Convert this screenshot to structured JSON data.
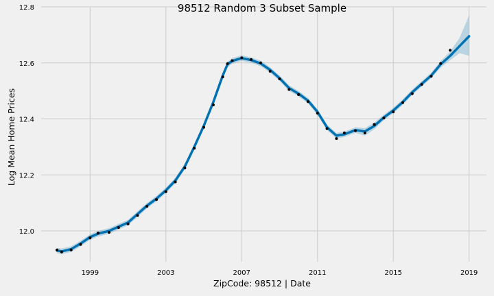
{
  "chart_data": {
    "type": "line",
    "title": "98512 Random 3 Subset Sample",
    "xlabel": "ZipCode: 98512 | Date",
    "ylabel": "Log Mean Home Prices",
    "xlim": [
      "1996-06-01",
      "2019-12-01"
    ],
    "ylim": [
      11.89,
      12.8
    ],
    "x_ticks": [
      "1999",
      "2003",
      "2007",
      "2011",
      "2015",
      "2019"
    ],
    "y_ticks": [
      "12.0",
      "12.2",
      "12.4",
      "12.6",
      "12.8"
    ],
    "grid": true,
    "colors": {
      "background": "#f0f0f0",
      "grid": "#cbcbcb",
      "forecast": "#0072B2",
      "uncertainty": "#0072B2",
      "actual": "#000000"
    },
    "series": [
      {
        "x": [
          "1997-04-01",
          "1997-07-01",
          "1998-01-01",
          "1998-07-01",
          "1999-01-01",
          "1999-06-01",
          "2000-01-01",
          "2000-07-01",
          "2001-01-01",
          "2001-07-01",
          "2002-01-01",
          "2002-07-01",
          "2003-01-01",
          "2003-07-01",
          "2004-01-01",
          "2004-07-01",
          "2005-01-01",
          "2005-07-01",
          "2006-01-01",
          "2006-04-01",
          "2006-07-01",
          "2007-01-01",
          "2007-07-01",
          "2008-01-01",
          "2008-07-01",
          "2009-01-01",
          "2009-07-01",
          "2010-01-01",
          "2010-07-01",
          "2011-01-01",
          "2011-07-01",
          "2012-01-01",
          "2012-06-01",
          "2013-01-01",
          "2013-07-01",
          "2014-01-01",
          "2014-07-01",
          "2015-01-01",
          "2015-07-01",
          "2016-01-01",
          "2016-07-01",
          "2017-01-01",
          "2017-07-01",
          "2018-01-01",
          "2018-07-01",
          "2019-01-01"
        ],
        "values": [
          11.93,
          11.927,
          11.935,
          11.955,
          11.978,
          11.99,
          12.0,
          12.015,
          12.03,
          12.06,
          12.09,
          12.115,
          12.145,
          12.18,
          12.23,
          12.3,
          12.375,
          12.46,
          12.555,
          12.595,
          12.607,
          12.617,
          12.61,
          12.598,
          12.575,
          12.545,
          12.51,
          12.49,
          12.465,
          12.425,
          12.37,
          12.34,
          12.345,
          12.36,
          12.355,
          12.375,
          12.405,
          12.43,
          12.46,
          12.495,
          12.525,
          12.555,
          12.595,
          12.625,
          12.66,
          12.695
        ],
        "lower": [
          11.92,
          11.917,
          11.925,
          11.945,
          11.968,
          11.98,
          11.99,
          12.005,
          12.02,
          12.05,
          12.08,
          12.105,
          12.135,
          12.17,
          12.22,
          12.29,
          12.365,
          12.45,
          12.545,
          12.585,
          12.597,
          12.607,
          12.6,
          12.588,
          12.565,
          12.535,
          12.5,
          12.48,
          12.455,
          12.415,
          12.36,
          12.33,
          12.335,
          12.35,
          12.34,
          12.363,
          12.395,
          12.42,
          12.45,
          12.485,
          12.515,
          12.545,
          12.583,
          12.61,
          12.635,
          12.625
        ],
        "upper": [
          11.94,
          11.937,
          11.945,
          11.965,
          11.988,
          12.0,
          12.01,
          12.025,
          12.04,
          12.07,
          12.1,
          12.125,
          12.155,
          12.19,
          12.24,
          12.31,
          12.385,
          12.47,
          12.565,
          12.605,
          12.617,
          12.627,
          12.62,
          12.608,
          12.585,
          12.555,
          12.52,
          12.5,
          12.475,
          12.435,
          12.38,
          12.35,
          12.355,
          12.37,
          12.367,
          12.387,
          12.415,
          12.44,
          12.47,
          12.505,
          12.535,
          12.565,
          12.607,
          12.64,
          12.69,
          12.77
        ]
      },
      {
        "x": [
          "1997-04-01",
          "1997-07-01",
          "1998-01-01",
          "1998-07-01",
          "1999-01-01",
          "1999-06-01",
          "2000-01-01",
          "2000-07-01",
          "2001-01-01",
          "2001-07-01",
          "2002-01-01",
          "2002-07-01",
          "2003-01-01",
          "2003-07-01",
          "2004-01-01",
          "2004-07-01",
          "2005-01-01",
          "2005-07-01",
          "2006-01-01",
          "2006-04-01",
          "2006-07-01",
          "2007-01-01",
          "2007-07-01",
          "2008-01-01",
          "2008-07-01",
          "2009-01-01",
          "2009-07-01",
          "2010-01-01",
          "2010-07-01",
          "2011-01-01",
          "2011-07-01",
          "2012-01-01",
          "2012-06-01",
          "2013-01-01",
          "2013-07-01",
          "2014-01-01",
          "2014-07-01",
          "2015-01-01",
          "2015-07-01",
          "2016-01-01",
          "2016-07-01",
          "2017-01-01",
          "2017-07-01",
          "2018-01-01"
        ],
        "values": [
          11.932,
          11.925,
          11.932,
          11.952,
          11.975,
          11.992,
          11.995,
          12.012,
          12.025,
          12.055,
          12.088,
          12.112,
          12.14,
          12.175,
          12.225,
          12.295,
          12.37,
          12.45,
          12.55,
          12.597,
          12.608,
          12.618,
          12.612,
          12.6,
          12.57,
          12.543,
          12.505,
          12.487,
          12.462,
          12.42,
          12.365,
          12.33,
          12.35,
          12.358,
          12.35,
          12.38,
          12.403,
          12.425,
          12.458,
          12.49,
          12.523,
          12.552,
          12.598,
          12.645
        ]
      }
    ]
  }
}
